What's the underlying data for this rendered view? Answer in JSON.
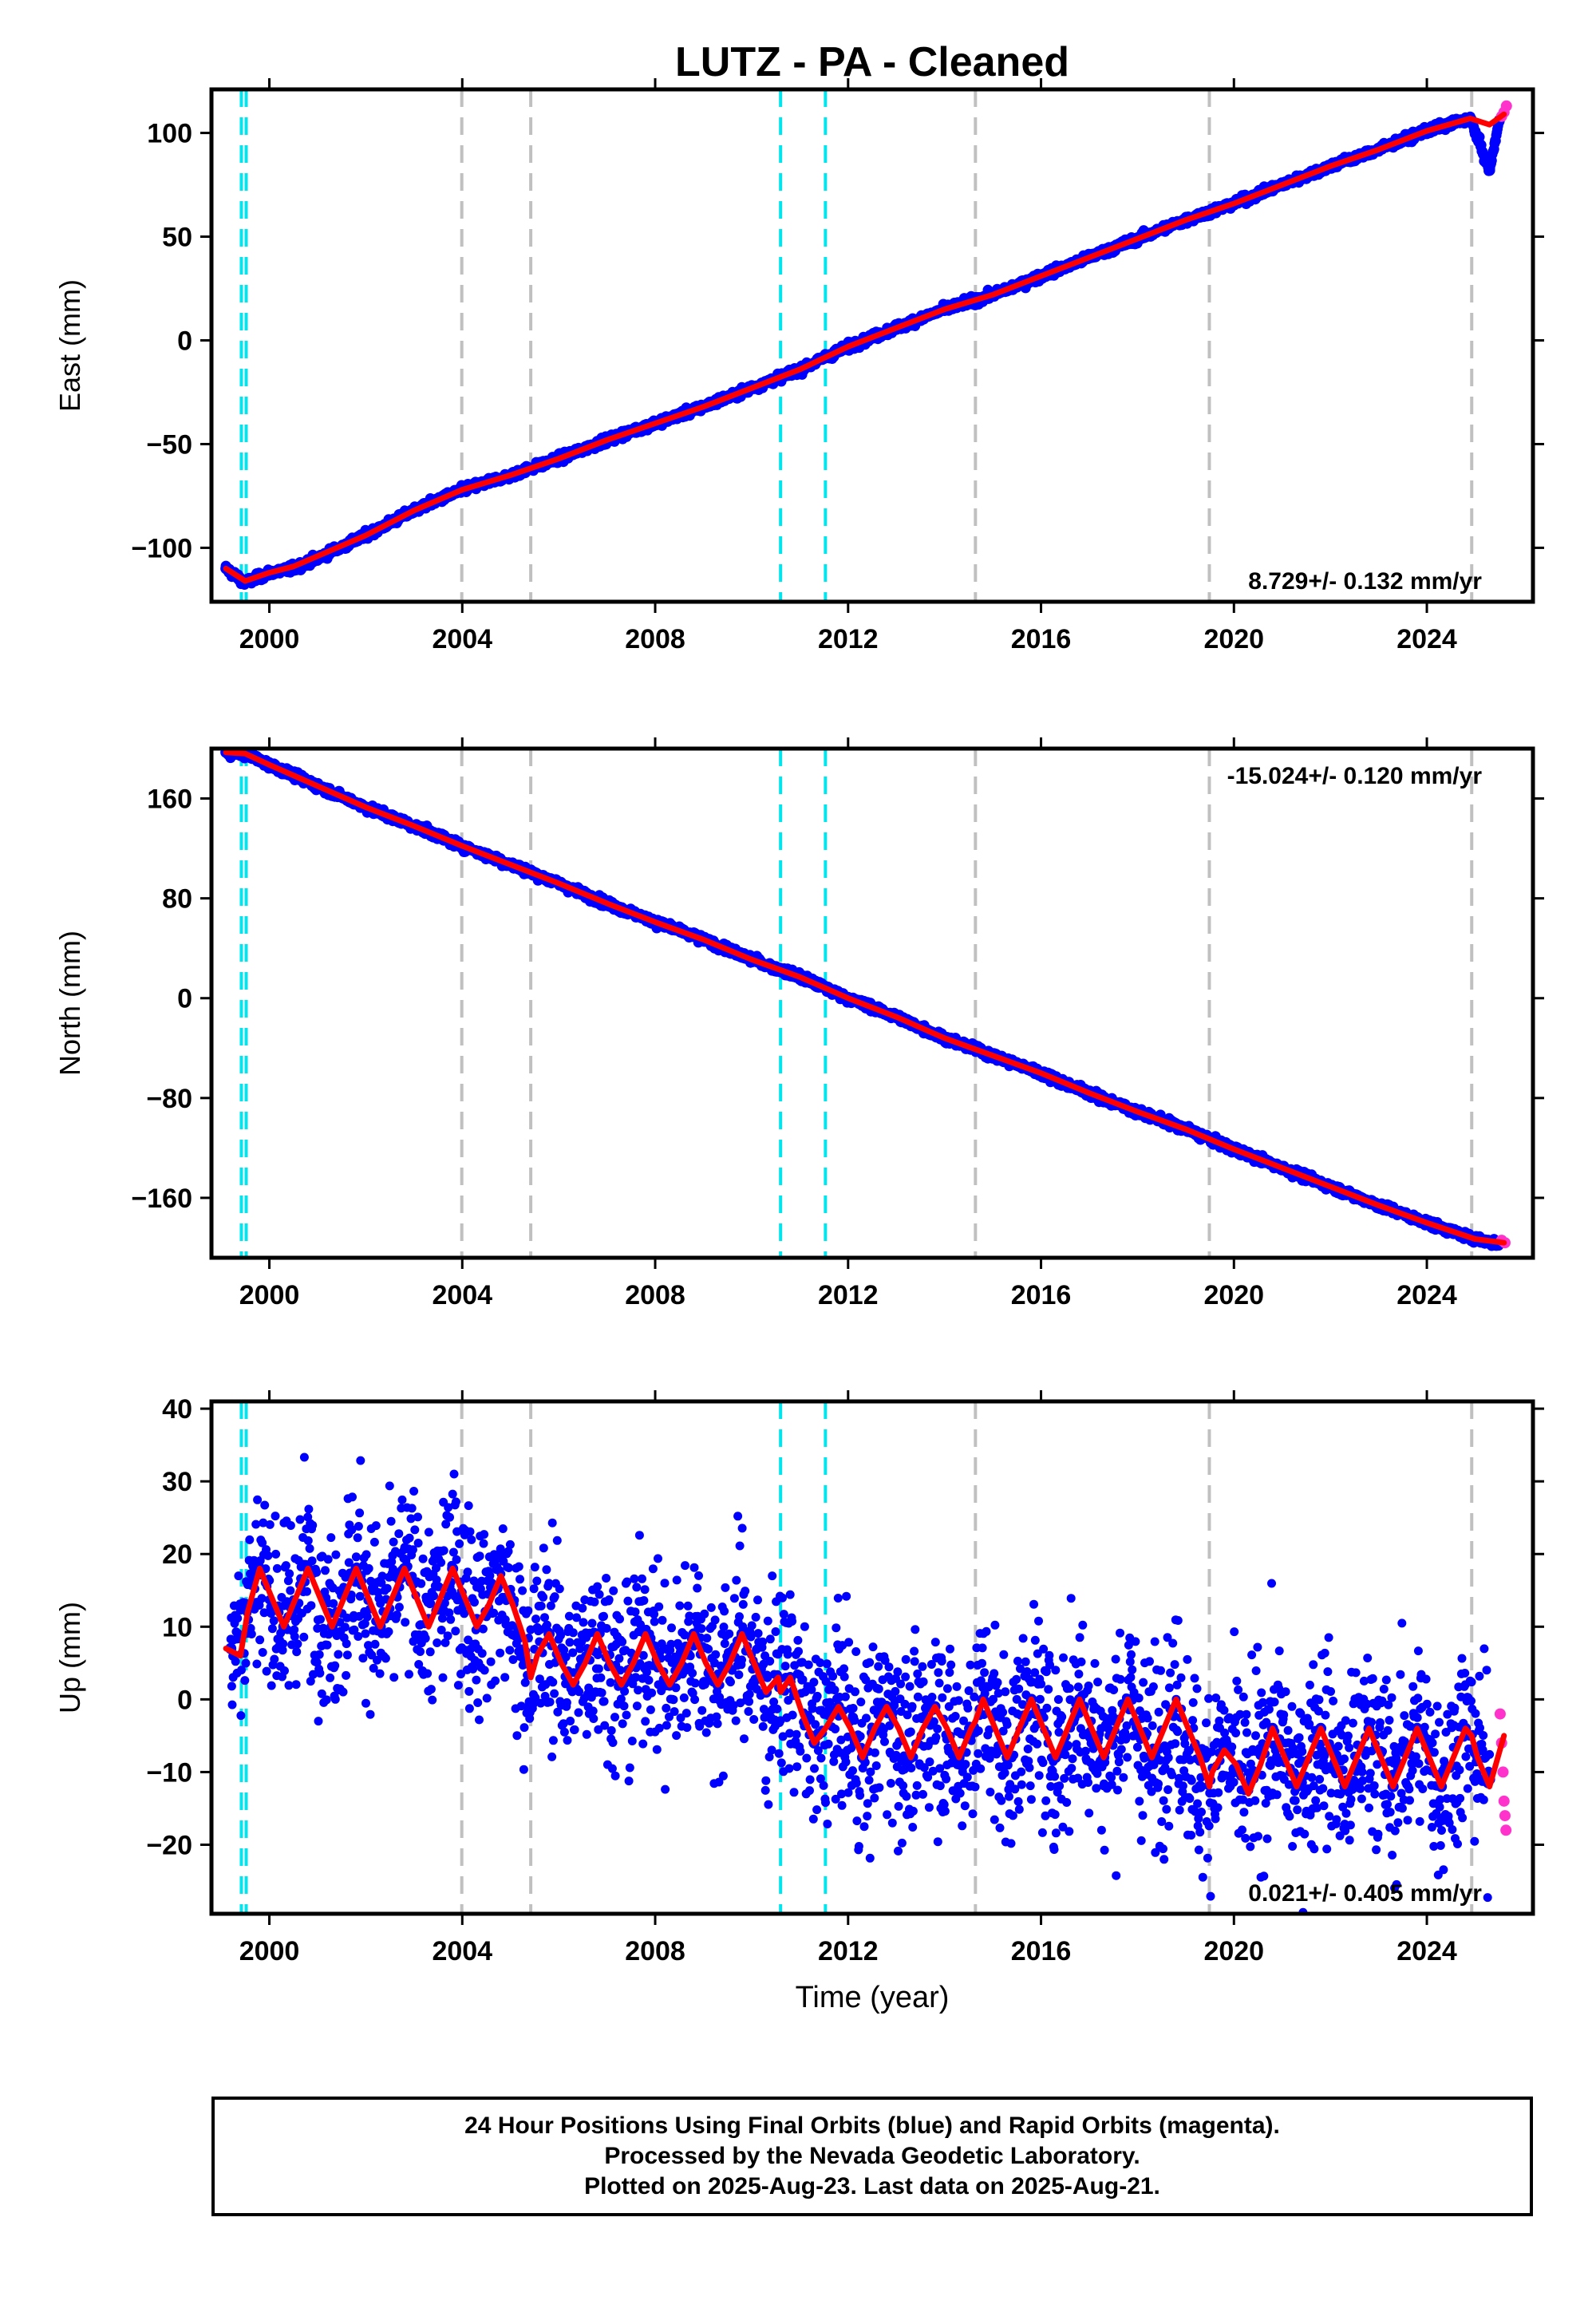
{
  "title": "LUTZ  - PA - Cleaned",
  "xlabel": "Time (year)",
  "x_ticks": [
    2000,
    2004,
    2008,
    2012,
    2016,
    2020,
    2024
  ],
  "colors": {
    "final": "#0000ff",
    "rapid": "#ff33cc",
    "model": "#ff0000",
    "antenna_change": "#00e5ee",
    "equipment_change": "#c0c0c0"
  },
  "vertical_lines": {
    "cyan": [
      1999.42,
      1999.52,
      2010.6,
      2011.53
    ],
    "gray": [
      2003.99,
      2005.42,
      2014.64,
      2019.49,
      2024.93
    ]
  },
  "footer": [
    "24 Hour Positions Using Final Orbits (blue) and Rapid Orbits (magenta).",
    "Processed by the Nevada Geodetic Laboratory.",
    "Plotted on 2025-Aug-23. Last data on 2025-Aug-21."
  ],
  "chart_data": [
    {
      "type": "scatter",
      "component": "east",
      "ylabel": "East (mm)",
      "xlim": [
        1998.8,
        2026.2
      ],
      "ylim": [
        -126,
        121
      ],
      "y_ticks": [
        100,
        50,
        0,
        -50,
        -100
      ],
      "rate_label": "8.729+/- 0.132 mm/yr",
      "rate_position": "bottom-right",
      "series": [
        {
          "kind": "final",
          "x": [
            1999.1,
            1999.5,
            2000.0,
            2000.5,
            2001.0,
            2002.0,
            2003.0,
            2004.0,
            2005.0,
            2006.0,
            2007.0,
            2008.0,
            2009.0,
            2010.0,
            2011.0,
            2012.0,
            2013.0,
            2014.0,
            2015.0,
            2016.0,
            2017.0,
            2018.0,
            2019.0,
            2020.0,
            2021.0,
            2022.0,
            2023.0,
            2024.0,
            2024.9,
            2025.3,
            2025.5
          ],
          "y": [
            -110,
            -117,
            -112,
            -110,
            -105,
            -94,
            -82,
            -72,
            -65,
            -57,
            -48,
            -40,
            -32,
            -23,
            -14,
            -3,
            6,
            15,
            22,
            31,
            40,
            49,
            58,
            66,
            75,
            84,
            92,
            101,
            107,
            82,
            106
          ]
        },
        {
          "kind": "rapid",
          "x": [
            2025.55,
            2025.6,
            2025.65
          ],
          "y": [
            108,
            110,
            113
          ]
        },
        {
          "kind": "model",
          "x": [
            1999.1,
            1999.5,
            2000.0,
            2000.5,
            2001.0,
            2002.0,
            2003.0,
            2004.0,
            2005.0,
            2006.0,
            2007.0,
            2008.0,
            2009.0,
            2010.0,
            2011.0,
            2012.0,
            2013.0,
            2014.0,
            2015.0,
            2016.0,
            2017.0,
            2018.0,
            2019.0,
            2020.0,
            2021.0,
            2022.0,
            2023.0,
            2024.0,
            2024.9,
            2025.3,
            2025.6
          ],
          "y": [
            -110,
            -116,
            -112,
            -109,
            -104,
            -94,
            -82,
            -72,
            -65,
            -57,
            -48,
            -40,
            -32,
            -23,
            -14,
            -3,
            6,
            15,
            22,
            31,
            40,
            49,
            58,
            66,
            75,
            84,
            92,
            101,
            107,
            104,
            109
          ]
        }
      ]
    },
    {
      "type": "scatter",
      "component": "north",
      "ylabel": "North (mm)",
      "xlim": [
        1998.8,
        2026.2
      ],
      "ylim": [
        -208,
        200
      ],
      "y_ticks": [
        160,
        80,
        0,
        -80,
        -160
      ],
      "rate_label": "-15.024+/- 0.120 mm/yr",
      "rate_position": "top-right",
      "series": [
        {
          "kind": "final",
          "x": [
            1999.1,
            1999.5,
            2000.0,
            2001.0,
            2002.0,
            2003.0,
            2004.0,
            2005.0,
            2006.0,
            2007.0,
            2008.0,
            2009.0,
            2010.0,
            2011.0,
            2012.0,
            2013.0,
            2014.0,
            2015.0,
            2016.0,
            2017.0,
            2018.0,
            2019.0,
            2020.0,
            2021.0,
            2022.0,
            2023.0,
            2024.0,
            2025.0,
            2025.5
          ],
          "y": [
            197,
            196,
            187,
            170,
            153,
            138,
            122,
            107,
            92,
            76,
            61,
            47,
            31,
            17,
            0,
            -15,
            -32,
            -46,
            -60,
            -76,
            -91,
            -105,
            -121,
            -136,
            -151,
            -166,
            -180,
            -193,
            -197
          ]
        },
        {
          "kind": "rapid",
          "x": [
            2025.55,
            2025.62
          ],
          "y": [
            -194,
            -196
          ]
        },
        {
          "kind": "model",
          "x": [
            1999.1,
            1999.5,
            2000.0,
            2001.0,
            2002.0,
            2003.0,
            2004.0,
            2005.0,
            2006.0,
            2007.0,
            2008.0,
            2009.0,
            2010.0,
            2011.0,
            2012.0,
            2013.0,
            2014.0,
            2015.0,
            2016.0,
            2017.0,
            2018.0,
            2019.0,
            2020.0,
            2021.0,
            2022.0,
            2023.0,
            2024.0,
            2025.0,
            2025.6
          ],
          "y": [
            197,
            196,
            187,
            170,
            153,
            138,
            122,
            107,
            92,
            76,
            61,
            47,
            31,
            17,
            0,
            -15,
            -32,
            -46,
            -60,
            -76,
            -91,
            -105,
            -121,
            -136,
            -151,
            -166,
            -180,
            -193,
            -196
          ]
        }
      ]
    },
    {
      "type": "scatter",
      "component": "up",
      "ylabel": "Up (mm)",
      "xlim": [
        1998.8,
        2026.2
      ],
      "ylim": [
        -29.5,
        41
      ],
      "y_ticks": [
        40,
        30,
        20,
        10,
        0,
        -10,
        -20
      ],
      "rate_label": "0.021+/- 0.405 mm/yr",
      "rate_position": "bottom-right",
      "scatter_spread_mm": 10,
      "series": [
        {
          "kind": "final",
          "x": [
            1999.2,
            1999.8,
            2000.3,
            2000.8,
            2001.3,
            2001.8,
            2002.3,
            2002.8,
            2003.3,
            2003.8,
            2004.3,
            2004.8,
            2005.3,
            2005.8,
            2006.3,
            2006.8,
            2007.3,
            2007.8,
            2008.3,
            2008.8,
            2009.3,
            2009.8,
            2010.3,
            2010.8,
            2011.3,
            2011.8,
            2012.3,
            2012.8,
            2013.3,
            2013.8,
            2014.3,
            2014.8,
            2015.3,
            2015.8,
            2016.3,
            2016.8,
            2017.3,
            2017.8,
            2018.3,
            2018.8,
            2019.3,
            2019.8,
            2020.3,
            2020.8,
            2021.3,
            2021.8,
            2022.3,
            2022.8,
            2023.3,
            2023.8,
            2024.3,
            2024.8,
            2025.3
          ],
          "y": [
            7,
            18,
            10,
            18,
            10,
            18,
            10,
            18,
            11,
            18,
            11,
            16,
            5,
            9,
            2,
            9,
            2,
            9,
            2,
            9,
            2,
            9,
            1,
            3,
            -6,
            -1,
            -8,
            -1,
            -8,
            -1,
            -8,
            0,
            -8,
            0,
            -8,
            0,
            -8,
            0,
            -8,
            -1,
            -12,
            -7,
            -12,
            -4,
            -12,
            -4,
            -12,
            -4,
            -12,
            -4,
            -12,
            -4,
            -11
          ]
        },
        {
          "kind": "rapid",
          "x": [
            2025.52,
            2025.55,
            2025.58,
            2025.6,
            2025.62,
            2025.64
          ],
          "y": [
            -2,
            -6,
            -10,
            -14,
            -16,
            -18
          ]
        },
        {
          "kind": "model",
          "x": [
            1999.1,
            1999.4,
            1999.55,
            1999.8,
            2000.05,
            2000.3,
            2000.55,
            2000.8,
            2001.05,
            2001.3,
            2001.55,
            2001.8,
            2002.05,
            2002.3,
            2002.55,
            2002.8,
            2003.05,
            2003.3,
            2003.55,
            2003.8,
            2003.99,
            2004.3,
            2004.55,
            2004.8,
            2005.05,
            2005.3,
            2005.42,
            2005.55,
            2005.8,
            2006.05,
            2006.3,
            2006.55,
            2006.8,
            2007.05,
            2007.3,
            2007.55,
            2007.8,
            2008.05,
            2008.3,
            2008.55,
            2008.8,
            2009.05,
            2009.3,
            2009.55,
            2009.8,
            2010.05,
            2010.3,
            2010.55,
            2010.6,
            2010.8,
            2011.05,
            2011.3,
            2011.53,
            2011.8,
            2012.05,
            2012.3,
            2012.55,
            2012.8,
            2013.05,
            2013.3,
            2013.55,
            2013.8,
            2014.05,
            2014.3,
            2014.55,
            2014.64,
            2014.8,
            2015.05,
            2015.3,
            2015.55,
            2015.8,
            2016.05,
            2016.3,
            2016.55,
            2016.8,
            2017.05,
            2017.3,
            2017.55,
            2017.8,
            2018.05,
            2018.3,
            2018.55,
            2018.8,
            2019.05,
            2019.3,
            2019.49,
            2019.55,
            2019.8,
            2020.05,
            2020.3,
            2020.55,
            2020.8,
            2021.05,
            2021.3,
            2021.55,
            2021.8,
            2022.05,
            2022.3,
            2022.55,
            2022.8,
            2023.05,
            2023.3,
            2023.55,
            2023.8,
            2024.05,
            2024.3,
            2024.55,
            2024.8,
            2024.93,
            2025.05,
            2025.3,
            2025.6
          ],
          "y": [
            7,
            6,
            12,
            18,
            14,
            10,
            14,
            18,
            14,
            10,
            14,
            18,
            14,
            10,
            14,
            18,
            14,
            10,
            14,
            18,
            15,
            10,
            13,
            17,
            13,
            8,
            3,
            6,
            9,
            5,
            2,
            5,
            9,
            5,
            2,
            5,
            9,
            5,
            2,
            5,
            9,
            5,
            2,
            5,
            9,
            5,
            1,
            3,
            1,
            3,
            -2,
            -6,
            -4,
            -1,
            -4,
            -8,
            -4,
            -1,
            -4,
            -8,
            -4,
            -1,
            -4,
            -8,
            -4,
            -3,
            0,
            -4,
            -8,
            -4,
            0,
            -4,
            -8,
            -4,
            0,
            -4,
            -8,
            -4,
            0,
            -4,
            -8,
            -4,
            0,
            -4,
            -8,
            -12,
            -10,
            -7,
            -9,
            -13,
            -9,
            -4,
            -8,
            -12,
            -8,
            -4,
            -8,
            -12,
            -8,
            -4,
            -8,
            -12,
            -8,
            -4,
            -8,
            -12,
            -8,
            -4,
            -5,
            -8,
            -12,
            -5
          ]
        }
      ]
    }
  ]
}
